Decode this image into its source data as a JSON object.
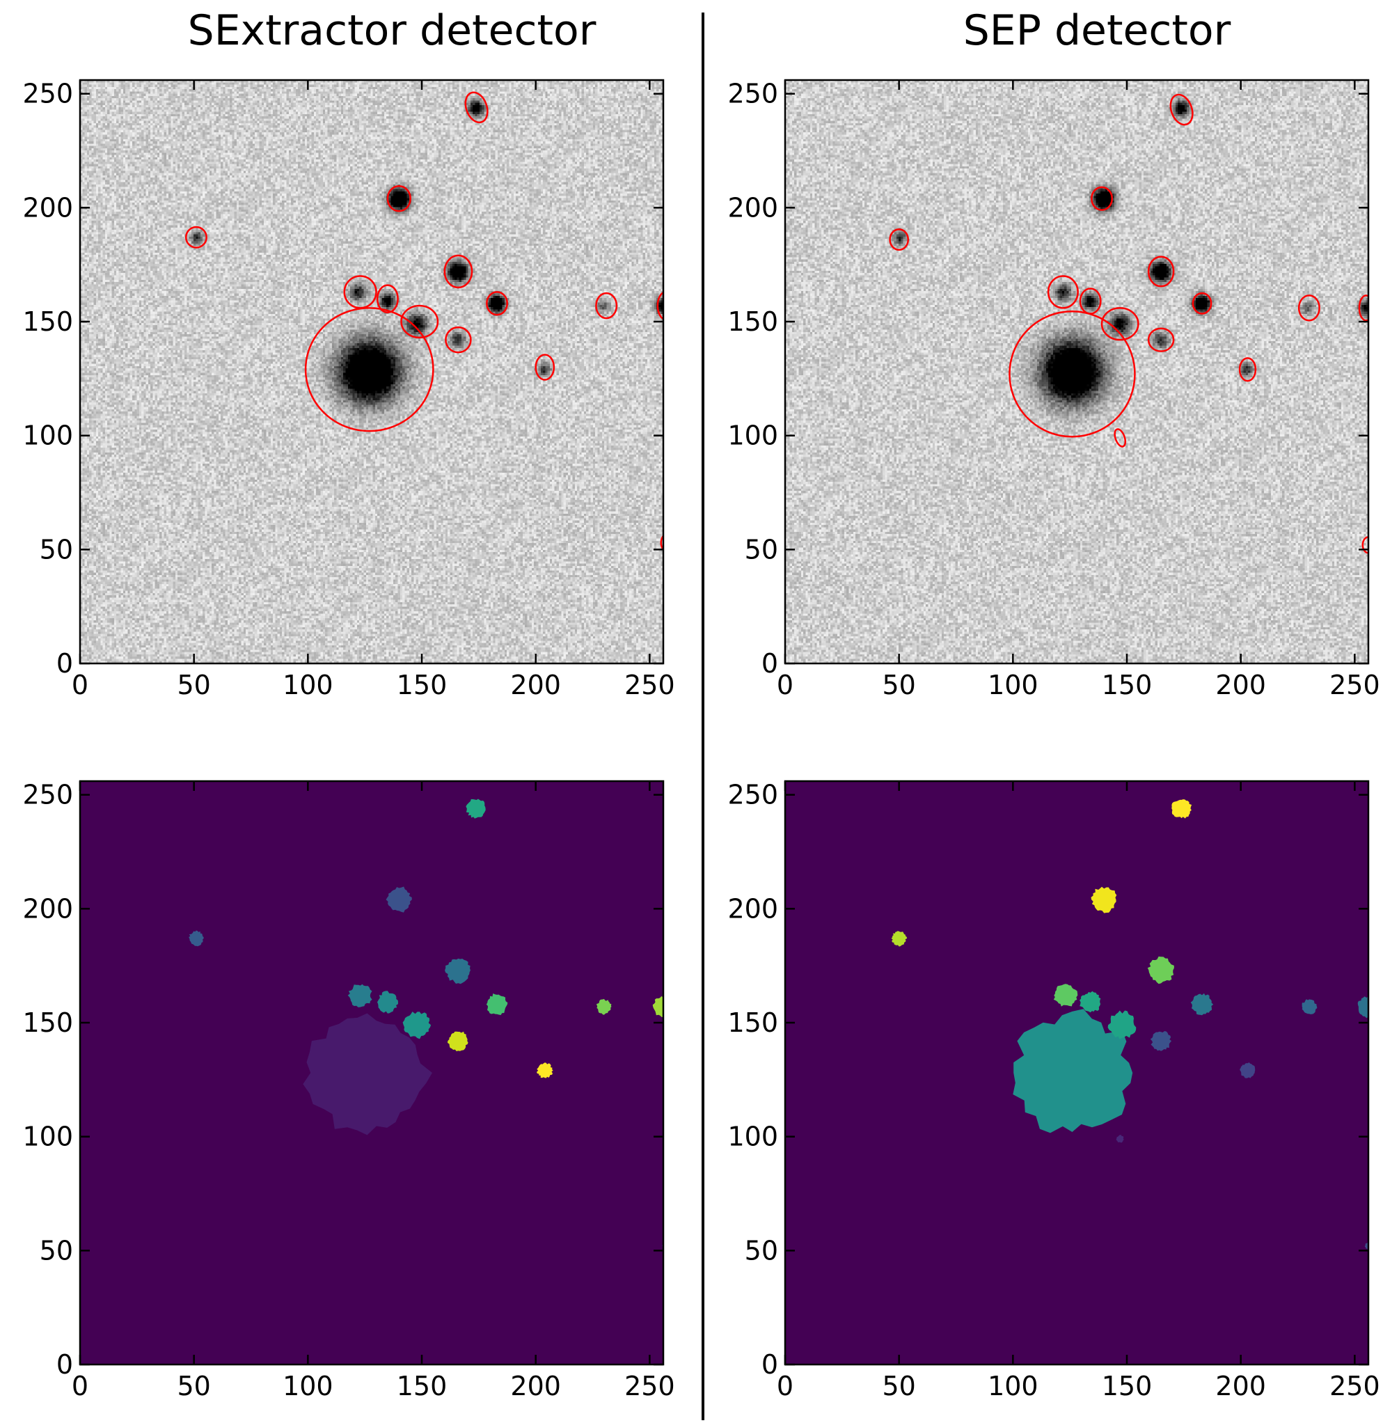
{
  "titles": {
    "left": "SExtractor detector",
    "right": "SEP detector"
  },
  "colors": {
    "ellipse": "#ff0000",
    "background_mask": "#440154",
    "divider": "#000000"
  },
  "chart_data": [
    {
      "type": "heatmap",
      "panel": "sextractor-image",
      "title": "SExtractor detector",
      "colormap": "gray_r",
      "xlim": [
        0,
        256
      ],
      "ylim": [
        0,
        256
      ],
      "xticks": [
        0,
        50,
        100,
        150,
        200,
        250
      ],
      "yticks": [
        0,
        50,
        100,
        150,
        200,
        250
      ],
      "sources": [
        {
          "x": 127,
          "y": 128,
          "peak": 1.0,
          "size": 9
        },
        {
          "x": 140,
          "y": 204,
          "peak": 0.95,
          "size": 3.2
        },
        {
          "x": 166,
          "y": 172,
          "peak": 0.9,
          "size": 3
        },
        {
          "x": 183,
          "y": 158,
          "peak": 0.9,
          "size": 2.6
        },
        {
          "x": 174,
          "y": 244,
          "peak": 0.7,
          "size": 2.4
        },
        {
          "x": 148,
          "y": 149,
          "peak": 0.6,
          "size": 3.2
        },
        {
          "x": 135,
          "y": 159,
          "peak": 0.65,
          "size": 2.4
        },
        {
          "x": 122,
          "y": 163,
          "peak": 0.5,
          "size": 2.6
        },
        {
          "x": 166,
          "y": 142,
          "peak": 0.45,
          "size": 2.4
        },
        {
          "x": 51,
          "y": 187,
          "peak": 0.45,
          "size": 2
        },
        {
          "x": 204,
          "y": 129,
          "peak": 0.45,
          "size": 2
        },
        {
          "x": 230,
          "y": 157,
          "peak": 0.3,
          "size": 2
        },
        {
          "x": 256,
          "y": 157,
          "peak": 0.6,
          "size": 2.4
        }
      ],
      "ellipses": [
        {
          "x": 127,
          "y": 129,
          "a": 28,
          "b": 27,
          "angle": 0
        },
        {
          "x": 140,
          "y": 204,
          "a": 5,
          "b": 5.5,
          "angle": 0
        },
        {
          "x": 166,
          "y": 172,
          "a": 6,
          "b": 7,
          "angle": 0
        },
        {
          "x": 183,
          "y": 158,
          "a": 4.5,
          "b": 5,
          "angle": 0
        },
        {
          "x": 174,
          "y": 244,
          "a": 4.5,
          "b": 6.8,
          "angle": 20
        },
        {
          "x": 149,
          "y": 150,
          "a": 8,
          "b": 7,
          "angle": 0
        },
        {
          "x": 135,
          "y": 160,
          "a": 4.5,
          "b": 6,
          "angle": 0
        },
        {
          "x": 123,
          "y": 163,
          "a": 7,
          "b": 7,
          "angle": 0
        },
        {
          "x": 166,
          "y": 142,
          "a": 5.5,
          "b": 5.5,
          "angle": 0
        },
        {
          "x": 51,
          "y": 187,
          "a": 4.5,
          "b": 4.5,
          "angle": 0
        },
        {
          "x": 204,
          "y": 130,
          "a": 4,
          "b": 5.5,
          "angle": 0
        },
        {
          "x": 231,
          "y": 157,
          "a": 4.5,
          "b": 5.5,
          "angle": 0
        },
        {
          "x": 257,
          "y": 157,
          "a": 3.5,
          "b": 6,
          "angle": 0
        },
        {
          "x": 258,
          "y": 53,
          "a": 3,
          "b": 4,
          "angle": 0
        }
      ]
    },
    {
      "type": "heatmap",
      "panel": "sep-image",
      "title": "SEP detector",
      "colormap": "gray_r",
      "xlim": [
        0,
        256
      ],
      "ylim": [
        0,
        256
      ],
      "xticks": [
        0,
        50,
        100,
        150,
        200,
        250
      ],
      "yticks": [
        0,
        50,
        100,
        150,
        200,
        250
      ],
      "sources": [
        {
          "x": 126,
          "y": 128,
          "peak": 1.0,
          "size": 9
        },
        {
          "x": 140,
          "y": 204,
          "peak": 0.95,
          "size": 3.2
        },
        {
          "x": 165,
          "y": 172,
          "peak": 0.9,
          "size": 3
        },
        {
          "x": 183,
          "y": 158,
          "peak": 0.9,
          "size": 2.6
        },
        {
          "x": 174,
          "y": 244,
          "peak": 0.7,
          "size": 2.4
        },
        {
          "x": 147,
          "y": 149,
          "peak": 0.6,
          "size": 3.2
        },
        {
          "x": 134,
          "y": 159,
          "peak": 0.65,
          "size": 2.4
        },
        {
          "x": 122,
          "y": 163,
          "peak": 0.5,
          "size": 2.6
        },
        {
          "x": 165,
          "y": 142,
          "peak": 0.45,
          "size": 2.4
        },
        {
          "x": 50,
          "y": 187,
          "peak": 0.45,
          "size": 2
        },
        {
          "x": 203,
          "y": 129,
          "peak": 0.45,
          "size": 2
        },
        {
          "x": 230,
          "y": 156,
          "peak": 0.3,
          "size": 2
        },
        {
          "x": 256,
          "y": 156,
          "peak": 0.6,
          "size": 2.4
        }
      ],
      "ellipses": [
        {
          "x": 126,
          "y": 127,
          "a": 27.5,
          "b": 27.5,
          "angle": 0
        },
        {
          "x": 139,
          "y": 204,
          "a": 4.5,
          "b": 5,
          "angle": 0
        },
        {
          "x": 165,
          "y": 172,
          "a": 5.5,
          "b": 6.5,
          "angle": 0
        },
        {
          "x": 183,
          "y": 158,
          "a": 4,
          "b": 4.5,
          "angle": 0
        },
        {
          "x": 174,
          "y": 243,
          "a": 4.5,
          "b": 6.8,
          "angle": 20
        },
        {
          "x": 147,
          "y": 149,
          "a": 8,
          "b": 7,
          "angle": 0
        },
        {
          "x": 134,
          "y": 159,
          "a": 4.5,
          "b": 5.5,
          "angle": 0
        },
        {
          "x": 122,
          "y": 163,
          "a": 6.5,
          "b": 7,
          "angle": 0
        },
        {
          "x": 165,
          "y": 142,
          "a": 5.5,
          "b": 5,
          "angle": 0
        },
        {
          "x": 50,
          "y": 186,
          "a": 4,
          "b": 4.5,
          "angle": 0
        },
        {
          "x": 203,
          "y": 129,
          "a": 3.5,
          "b": 5,
          "angle": 0
        },
        {
          "x": 230,
          "y": 156,
          "a": 4.5,
          "b": 5.5,
          "angle": 0
        },
        {
          "x": 255,
          "y": 156,
          "a": 3,
          "b": 5.5,
          "angle": 0
        },
        {
          "x": 147,
          "y": 99,
          "a": 2,
          "b": 4,
          "angle": 20
        },
        {
          "x": 256,
          "y": 52,
          "a": 2.5,
          "b": 3.5,
          "angle": 0
        }
      ]
    },
    {
      "type": "heatmap",
      "panel": "sextractor-segmentation",
      "colormap": "viridis",
      "xlim": [
        0,
        256
      ],
      "ylim": [
        0,
        256
      ],
      "xticks": [
        0,
        50,
        100,
        150,
        200,
        250
      ],
      "yticks": [
        0,
        50,
        100,
        150,
        200,
        250
      ],
      "background": "#440154",
      "segments": [
        {
          "x": 126,
          "y": 128,
          "r": 26,
          "color": "#481a6c"
        },
        {
          "x": 140,
          "y": 204,
          "r": 5.5,
          "color": "#3b528b"
        },
        {
          "x": 51,
          "y": 187,
          "r": 3.2,
          "color": "#365c8d"
        },
        {
          "x": 166,
          "y": 173,
          "r": 5.5,
          "color": "#2c728e"
        },
        {
          "x": 123,
          "y": 162,
          "r": 5,
          "color": "#287d8e"
        },
        {
          "x": 135,
          "y": 159,
          "r": 4.5,
          "color": "#238a8d"
        },
        {
          "x": 148,
          "y": 149,
          "r": 5.8,
          "color": "#1f988b"
        },
        {
          "x": 174,
          "y": 244,
          "r": 4.3,
          "color": "#22a884"
        },
        {
          "x": 183,
          "y": 158,
          "r": 4.6,
          "color": "#44bf70"
        },
        {
          "x": 230,
          "y": 157,
          "r": 3.2,
          "color": "#7ad151"
        },
        {
          "x": 256,
          "y": 157,
          "r": 4.5,
          "color": "#a0da39"
        },
        {
          "x": 166,
          "y": 142,
          "r": 4.3,
          "color": "#d0e11c"
        },
        {
          "x": 204,
          "y": 129,
          "r": 3.3,
          "color": "#fde725"
        },
        {
          "x": 257,
          "y": 52,
          "r": 1.5,
          "color": "#31688e"
        }
      ]
    },
    {
      "type": "heatmap",
      "panel": "sep-segmentation",
      "colormap": "viridis",
      "xlim": [
        0,
        256
      ],
      "ylim": [
        0,
        256
      ],
      "xticks": [
        0,
        50,
        100,
        150,
        200,
        250
      ],
      "yticks": [
        0,
        50,
        100,
        150,
        200,
        250
      ],
      "background": "#440154",
      "segments": [
        {
          "x": 126,
          "y": 128,
          "r": 26,
          "color": "#21918c"
        },
        {
          "x": 148,
          "y": 149,
          "r": 5.8,
          "color": "#20a486"
        },
        {
          "x": 134,
          "y": 159,
          "r": 4.5,
          "color": "#22a884"
        },
        {
          "x": 123,
          "y": 162,
          "r": 5,
          "color": "#5ec962"
        },
        {
          "x": 140,
          "y": 204,
          "r": 5.5,
          "color": "#f1e51d"
        },
        {
          "x": 174,
          "y": 244,
          "r": 4.3,
          "color": "#fde725"
        },
        {
          "x": 50,
          "y": 187,
          "r": 3.2,
          "color": "#b5de2b"
        },
        {
          "x": 165,
          "y": 173,
          "r": 5.5,
          "color": "#6ece58"
        },
        {
          "x": 183,
          "y": 158,
          "r": 4.6,
          "color": "#2a788e"
        },
        {
          "x": 165,
          "y": 142,
          "r": 4.3,
          "color": "#3b528b"
        },
        {
          "x": 203,
          "y": 129,
          "r": 3.3,
          "color": "#414487"
        },
        {
          "x": 230,
          "y": 157,
          "r": 3.2,
          "color": "#31688e"
        },
        {
          "x": 256,
          "y": 157,
          "r": 4.5,
          "color": "#2c728e"
        },
        {
          "x": 147,
          "y": 99,
          "r": 1.6,
          "color": "#482878"
        },
        {
          "x": 256,
          "y": 52,
          "r": 1.5,
          "color": "#3e4a89"
        }
      ]
    }
  ]
}
